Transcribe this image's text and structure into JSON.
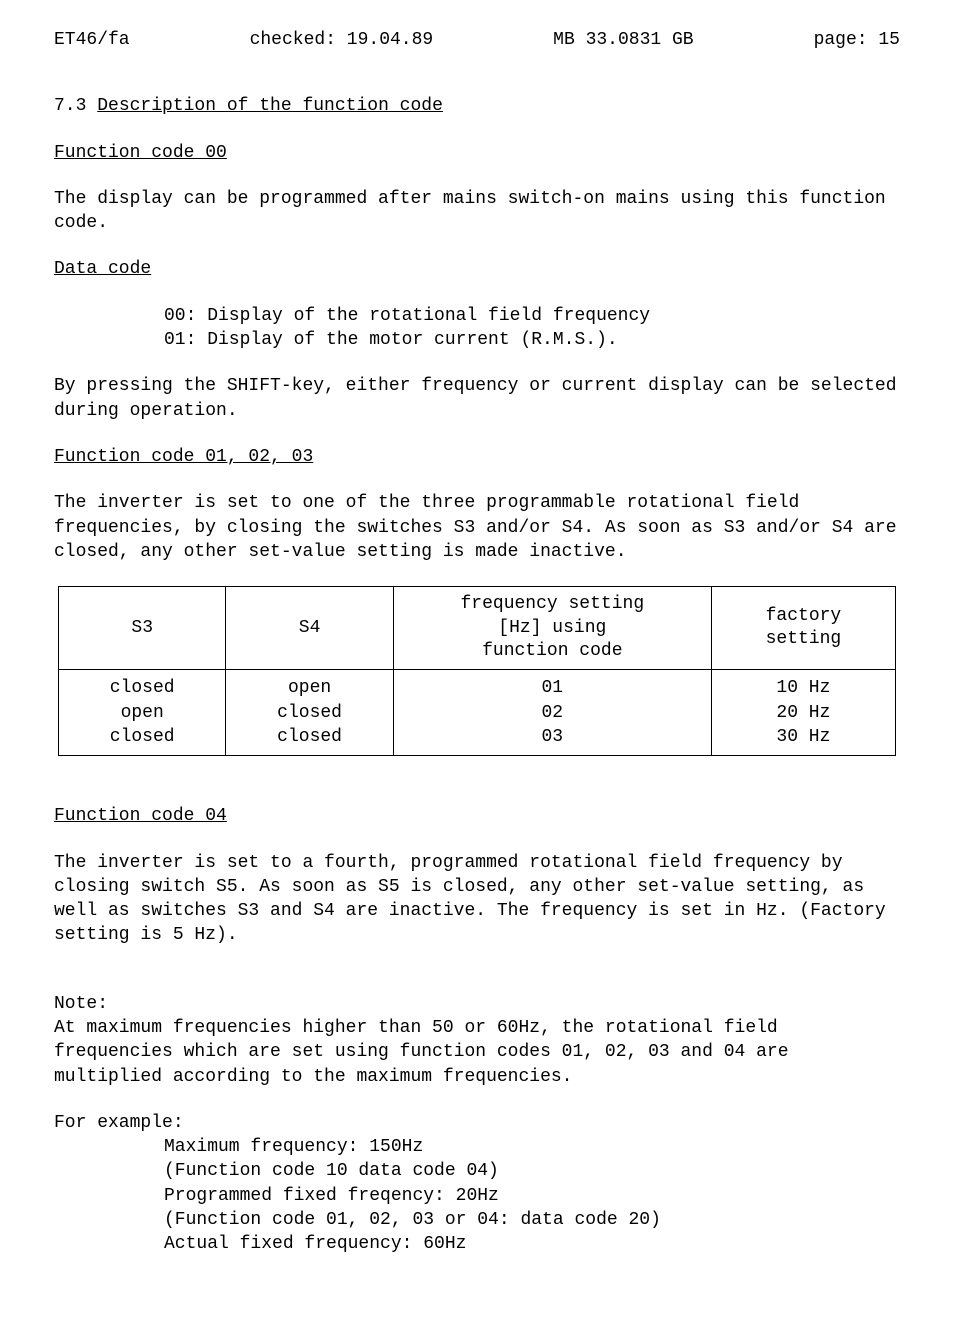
{
  "header": {
    "doc_id": "ET46/fa",
    "checked": "checked: 19.04.89",
    "ref": "MB 33.0831 GB",
    "page": "page: 15"
  },
  "section": {
    "number": "7.3",
    "title": "Description of the function code"
  },
  "fc00": {
    "heading": "Function code 00",
    "para": "The display can be programmed after mains switch-on mains using this function code.",
    "data_code_heading": "Data code",
    "item0": "00: Display of the rotational field frequency",
    "item1": "01: Display of the motor current (R.M.S.).",
    "shift_para": "By pressing the SHIFT-key, either frequency or current display can be selected during operation."
  },
  "fc010203": {
    "heading": "Function code 01, 02, 03",
    "para": "The inverter is set to one of the three programmable rotational field frequencies, by closing the switches S3 and/or S4. As soon as S3 and/or S4 are closed, any other set-value setting is made inactive."
  },
  "table": {
    "headers": {
      "c1": "S3",
      "c2": "S4",
      "c3_line1": "frequency setting",
      "c3_line2": "[Hz] using",
      "c3_line3": "function code",
      "c4_line1": "factory",
      "c4_line2": "setting"
    },
    "rows": {
      "r0": {
        "s3": "closed",
        "s4": "open",
        "code": "01",
        "factory": "10 Hz"
      },
      "r1": {
        "s3": "open",
        "s4": "closed",
        "code": "02",
        "factory": "20 Hz"
      },
      "r2": {
        "s3": "closed",
        "s4": "closed",
        "code": "03",
        "factory": "30 Hz"
      }
    }
  },
  "fc04": {
    "heading": "Function code 04",
    "para": "The inverter is set to a fourth, programmed rotational field frequency by closing switch S5. As soon as S5 is closed, any other set-value setting, as well as switches S3 and S4 are inactive. The frequency is set in Hz. (Factory setting is 5 Hz)."
  },
  "note": {
    "label": "Note:",
    "para": "At maximum frequencies higher than 50 or 60Hz, the rotational field frequencies which are set using function codes 01, 02, 03 and 04 are multiplied according to the maximum frequencies."
  },
  "example": {
    "label": "For example:",
    "l1": "Maximum frequency: 150Hz",
    "l2": "(Function code 10 data code 04)",
    "l3": "Programmed fixed freqency: 20Hz",
    "l4": "(Function code 01, 02, 03 or 04: data code 20)",
    "l5": "Actual fixed frequency: 60Hz"
  }
}
